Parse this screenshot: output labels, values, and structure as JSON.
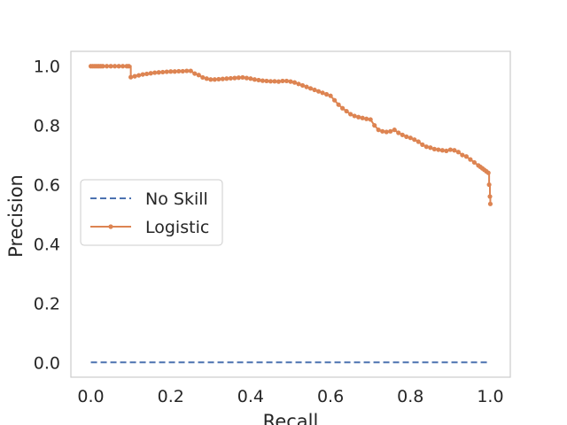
{
  "chart_data": {
    "type": "line",
    "title": "",
    "xlabel": "Recall",
    "ylabel": "Precision",
    "xlim": [
      -0.05,
      1.05
    ],
    "ylim": [
      -0.05,
      1.05
    ],
    "xticks": [
      "0.0",
      "0.2",
      "0.4",
      "0.6",
      "0.8",
      "1.0"
    ],
    "yticks": [
      "0.0",
      "0.2",
      "0.4",
      "0.6",
      "0.8",
      "1.0"
    ],
    "grid": false,
    "legend": {
      "placement": "center-left",
      "entries": [
        "No Skill",
        "Logistic"
      ]
    },
    "colors": {
      "no_skill": "#4c72b0",
      "logistic": "#dd8452",
      "axes": "#cccccc",
      "text": "#262626"
    },
    "series": [
      {
        "name": "No Skill",
        "style": "dashed",
        "x": [
          0,
          1
        ],
        "y": [
          0.0,
          0.0
        ]
      },
      {
        "name": "Logistic",
        "style": "solid-with-dots",
        "x": [
          0.0,
          0.005,
          0.01,
          0.015,
          0.02,
          0.025,
          0.03,
          0.04,
          0.05,
          0.06,
          0.07,
          0.08,
          0.09,
          0.095,
          0.1,
          0.11,
          0.12,
          0.13,
          0.14,
          0.15,
          0.16,
          0.17,
          0.18,
          0.19,
          0.2,
          0.21,
          0.22,
          0.23,
          0.24,
          0.25,
          0.26,
          0.27,
          0.28,
          0.29,
          0.3,
          0.31,
          0.32,
          0.33,
          0.34,
          0.35,
          0.36,
          0.37,
          0.38,
          0.39,
          0.4,
          0.41,
          0.42,
          0.43,
          0.44,
          0.45,
          0.46,
          0.47,
          0.48,
          0.49,
          0.5,
          0.51,
          0.52,
          0.53,
          0.54,
          0.55,
          0.56,
          0.57,
          0.58,
          0.59,
          0.6,
          0.61,
          0.62,
          0.63,
          0.64,
          0.65,
          0.66,
          0.67,
          0.68,
          0.69,
          0.7,
          0.71,
          0.72,
          0.73,
          0.74,
          0.75,
          0.76,
          0.77,
          0.78,
          0.79,
          0.8,
          0.81,
          0.82,
          0.83,
          0.84,
          0.85,
          0.86,
          0.87,
          0.88,
          0.89,
          0.9,
          0.91,
          0.92,
          0.93,
          0.94,
          0.95,
          0.96,
          0.97,
          0.975,
          0.98,
          0.985,
          0.99,
          0.995,
          0.997,
          0.999,
          1.0
        ],
        "y": [
          1.0,
          1.0,
          1.0,
          1.0,
          1.0,
          1.0,
          1.0,
          1.0,
          1.0,
          1.0,
          1.0,
          1.0,
          1.0,
          1.0,
          0.963,
          0.966,
          0.969,
          0.972,
          0.974,
          0.976,
          0.978,
          0.979,
          0.98,
          0.981,
          0.982,
          0.982,
          0.983,
          0.983,
          0.984,
          0.984,
          0.975,
          0.97,
          0.962,
          0.958,
          0.955,
          0.955,
          0.956,
          0.957,
          0.958,
          0.959,
          0.96,
          0.961,
          0.962,
          0.96,
          0.958,
          0.955,
          0.953,
          0.951,
          0.95,
          0.949,
          0.949,
          0.948,
          0.95,
          0.95,
          0.948,
          0.945,
          0.94,
          0.935,
          0.93,
          0.925,
          0.92,
          0.915,
          0.91,
          0.905,
          0.9,
          0.885,
          0.87,
          0.858,
          0.848,
          0.838,
          0.832,
          0.828,
          0.825,
          0.822,
          0.82,
          0.8,
          0.785,
          0.78,
          0.778,
          0.78,
          0.785,
          0.775,
          0.768,
          0.762,
          0.758,
          0.752,
          0.745,
          0.735,
          0.728,
          0.725,
          0.72,
          0.718,
          0.716,
          0.714,
          0.718,
          0.716,
          0.71,
          0.7,
          0.695,
          0.685,
          0.675,
          0.665,
          0.66,
          0.655,
          0.65,
          0.645,
          0.64,
          0.6,
          0.56,
          0.535
        ]
      }
    ]
  }
}
